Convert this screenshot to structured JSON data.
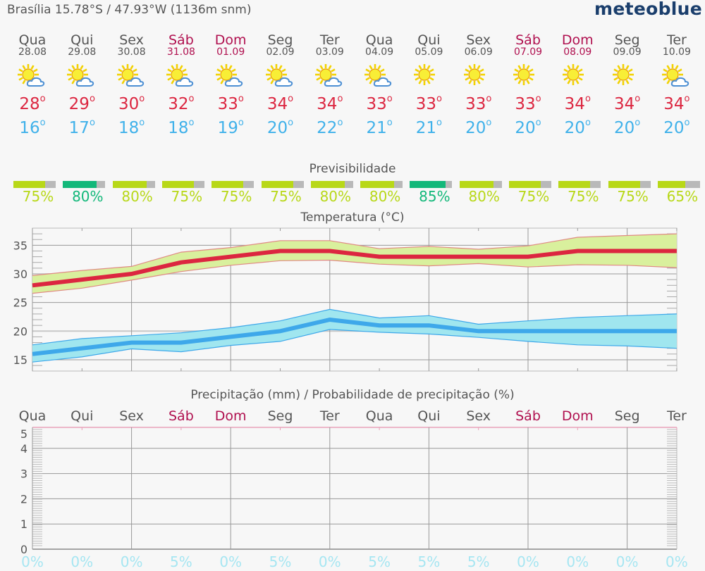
{
  "header": {
    "location": "Brasília  15.78°S / 47.93°W (1136m snm)",
    "logo": "meteoblue"
  },
  "colors": {
    "weekday": "#555555",
    "weekend": "#b0104f",
    "tmax": "#dc2640",
    "tmin": "#3fb1ea",
    "predict_high": "#13b87a",
    "predict_normal": "#b8d818",
    "predict_rest": "#b9b9b9",
    "precip_prob": "#a6e6f2",
    "logo": "#1a3e6c"
  },
  "days": [
    {
      "name": "Qua",
      "date": "28.08",
      "weekend": false,
      "icon": "sun-cloud-icon",
      "tmax": "28",
      "tmin": "16",
      "predict": 75,
      "predict_label": "75%",
      "precip_prob": "0%"
    },
    {
      "name": "Qui",
      "date": "29.08",
      "weekend": false,
      "icon": "sun-cloud-icon",
      "tmax": "29",
      "tmin": "17",
      "predict": 80,
      "predict_label": "80%",
      "precip_prob": "0%",
      "predict_high": true
    },
    {
      "name": "Sex",
      "date": "30.08",
      "weekend": false,
      "icon": "sun-cloud-icon",
      "tmax": "30",
      "tmin": "18",
      "predict": 80,
      "predict_label": "80%",
      "precip_prob": "0%"
    },
    {
      "name": "Sáb",
      "date": "31.08",
      "weekend": true,
      "icon": "sun-cloud-icon",
      "tmax": "32",
      "tmin": "18",
      "predict": 75,
      "predict_label": "75%",
      "precip_prob": "5%"
    },
    {
      "name": "Dom",
      "date": "01.09",
      "weekend": true,
      "icon": "sun-cloud-icon",
      "tmax": "33",
      "tmin": "19",
      "predict": 75,
      "predict_label": "75%",
      "precip_prob": "0%"
    },
    {
      "name": "Seg",
      "date": "02.09",
      "weekend": false,
      "icon": "sun-cloud-icon",
      "tmax": "34",
      "tmin": "20",
      "predict": 75,
      "predict_label": "75%",
      "precip_prob": "5%"
    },
    {
      "name": "Ter",
      "date": "03.09",
      "weekend": false,
      "icon": "sun-cloud-icon",
      "tmax": "34",
      "tmin": "22",
      "predict": 80,
      "predict_label": "80%",
      "precip_prob": "0%"
    },
    {
      "name": "Qua",
      "date": "04.09",
      "weekend": false,
      "icon": "sun-cloud-icon",
      "tmax": "33",
      "tmin": "21",
      "predict": 80,
      "predict_label": "80%",
      "precip_prob": "5%"
    },
    {
      "name": "Qui",
      "date": "05.09",
      "weekend": false,
      "icon": "sun-icon",
      "tmax": "33",
      "tmin": "21",
      "predict": 85,
      "predict_label": "85%",
      "precip_prob": "5%",
      "predict_high": true
    },
    {
      "name": "Sex",
      "date": "06.09",
      "weekend": false,
      "icon": "sun-icon",
      "tmax": "33",
      "tmin": "20",
      "predict": 80,
      "predict_label": "80%",
      "precip_prob": "5%"
    },
    {
      "name": "Sáb",
      "date": "07.09",
      "weekend": true,
      "icon": "sun-icon",
      "tmax": "33",
      "tmin": "20",
      "predict": 75,
      "predict_label": "75%",
      "precip_prob": "0%"
    },
    {
      "name": "Dom",
      "date": "08.09",
      "weekend": true,
      "icon": "sun-icon",
      "tmax": "34",
      "tmin": "20",
      "predict": 75,
      "predict_label": "75%",
      "precip_prob": "0%"
    },
    {
      "name": "Seg",
      "date": "09.09",
      "weekend": false,
      "icon": "sun-icon",
      "tmax": "34",
      "tmin": "20",
      "predict": 75,
      "predict_label": "75%",
      "precip_prob": "0%"
    },
    {
      "name": "Ter",
      "date": "10.09",
      "weekend": false,
      "icon": "sun-cloud-icon",
      "tmax": "34",
      "tmin": "20",
      "predict": 65,
      "predict_label": "65%",
      "precip_prob": "0%"
    }
  ],
  "sections": {
    "predictability": "Previsibilidade",
    "temperature": "Temperatura (°C)",
    "precipitation": "Precipitação (mm) / Probabilidade de precipitação (%)"
  },
  "chart_data": [
    {
      "type": "line",
      "title": "Temperatura (°C)",
      "xlabel": "",
      "ylabel": "°C",
      "ylim": [
        14,
        38
      ],
      "yticks": [
        15,
        20,
        25,
        30,
        35
      ],
      "grid": true,
      "categories": [
        "28.08",
        "29.08",
        "30.08",
        "31.08",
        "01.09",
        "02.09",
        "03.09",
        "04.09",
        "05.09",
        "06.09",
        "07.09",
        "08.09",
        "09.09",
        "10.09"
      ],
      "series": [
        {
          "name": "Max temperature",
          "color": "#dc2640",
          "values": [
            28,
            29,
            30,
            32,
            33,
            34,
            34,
            33,
            33,
            33,
            33,
            34,
            34,
            34
          ]
        },
        {
          "name": "Max temperature upper spread",
          "color": "#d9f09d",
          "values": [
            29.7,
            30.6,
            31.3,
            33.8,
            34.6,
            35.8,
            35.8,
            34.4,
            34.8,
            34.3,
            34.9,
            36.4,
            36.7,
            37.0
          ]
        },
        {
          "name": "Max temperature lower spread",
          "color": "#d9f09d",
          "values": [
            26.6,
            27.5,
            28.9,
            30.4,
            31.5,
            32.3,
            32.4,
            31.7,
            31.4,
            31.8,
            31.2,
            31.6,
            31.5,
            31.1
          ]
        },
        {
          "name": "Min temperature",
          "color": "#3fb1ea",
          "values": [
            16,
            17,
            18,
            18,
            19,
            20,
            22,
            21,
            21,
            20,
            20,
            20,
            20,
            20
          ]
        },
        {
          "name": "Min temperature upper spread",
          "color": "#a0e6ef",
          "values": [
            17.6,
            18.7,
            19.2,
            19.7,
            20.6,
            21.8,
            23.8,
            22.3,
            22.7,
            21.2,
            21.8,
            22.4,
            22.7,
            23.0
          ]
        },
        {
          "name": "Min temperature lower spread",
          "color": "#a0e6ef",
          "values": [
            14.6,
            15.5,
            16.9,
            16.4,
            17.5,
            18.2,
            20.3,
            19.8,
            19.5,
            18.9,
            18.2,
            17.6,
            17.4,
            17.0
          ]
        }
      ]
    },
    {
      "type": "bar",
      "title": "Precipitação (mm) / Probabilidade de precipitação (%)",
      "xlabel": "",
      "ylabel": "mm",
      "ylim": [
        0,
        5
      ],
      "yticks": [
        0,
        1,
        2,
        3,
        4,
        5
      ],
      "grid": true,
      "categories": [
        "Qua",
        "Qui",
        "Sex",
        "Sáb",
        "Dom",
        "Seg",
        "Ter",
        "Qua",
        "Qui",
        "Sex",
        "Sáb",
        "Dom",
        "Seg",
        "Ter"
      ],
      "series": [
        {
          "name": "Precipitation (mm)",
          "values": [
            0,
            0,
            0,
            0,
            0,
            0,
            0,
            0,
            0,
            0,
            0,
            0,
            0,
            0
          ]
        },
        {
          "name": "Precipitation probability (%)",
          "values": [
            0,
            0,
            0,
            5,
            0,
            5,
            0,
            5,
            5,
            5,
            0,
            0,
            0,
            0
          ]
        }
      ]
    }
  ],
  "temp_axis_labels": [
    "35",
    "30",
    "25",
    "20",
    "15"
  ],
  "precip_axis_labels": [
    "5",
    "4",
    "3",
    "2",
    "1",
    "0"
  ]
}
